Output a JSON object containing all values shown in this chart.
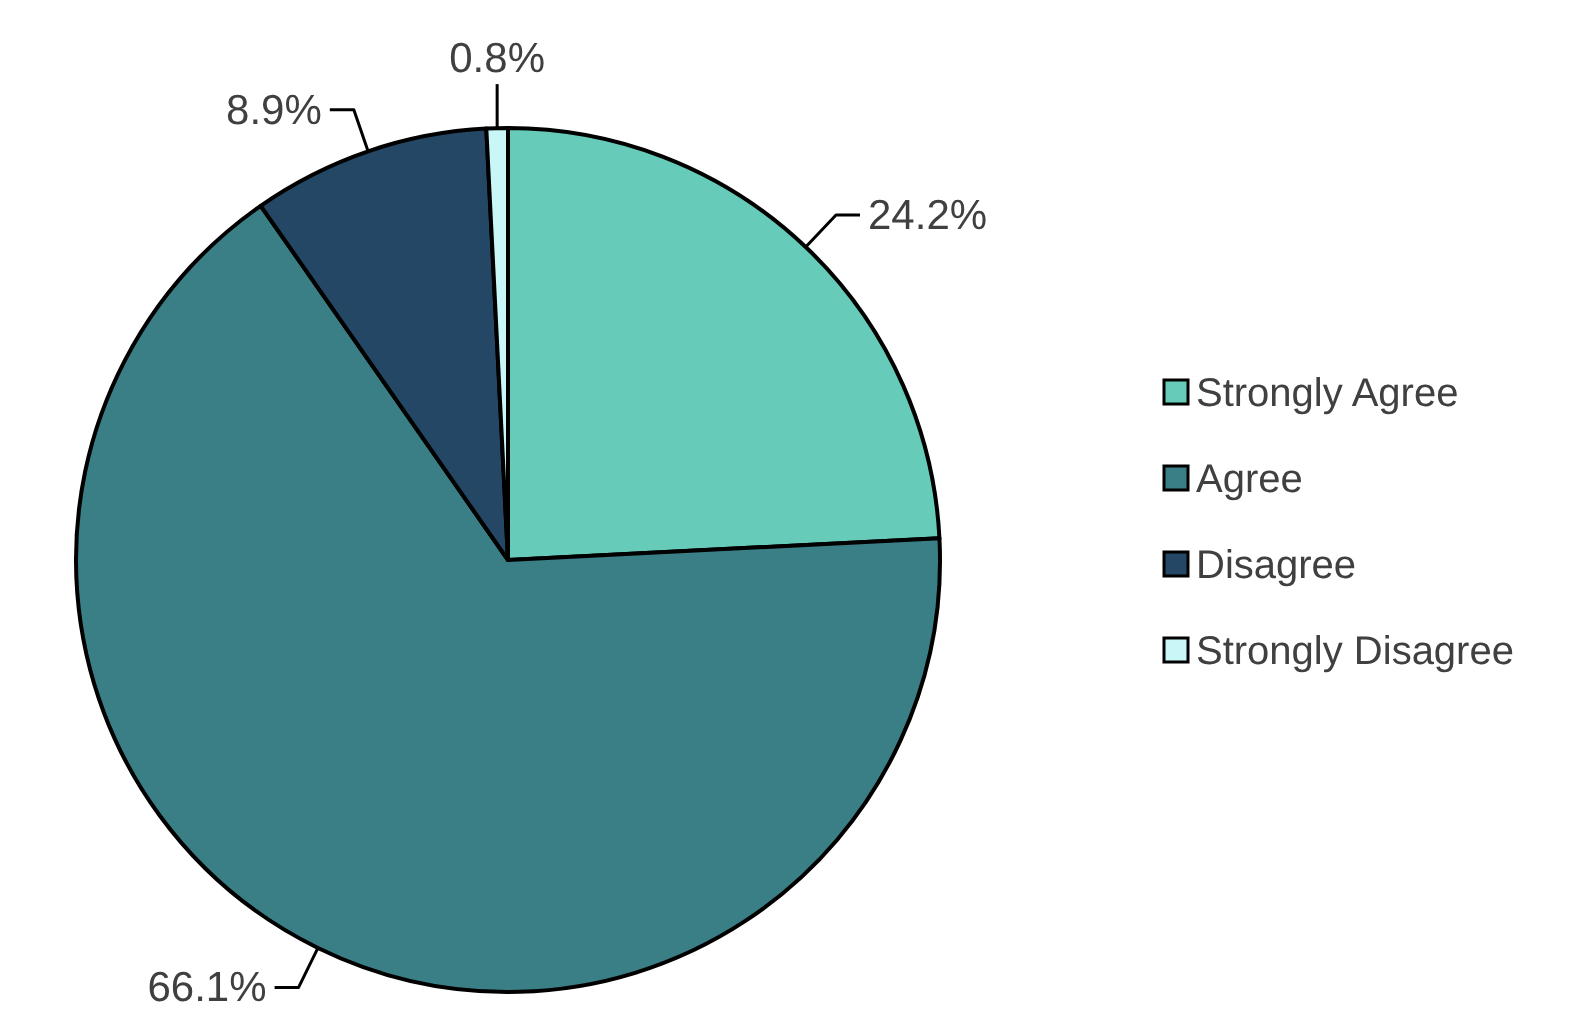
{
  "chart_data": {
    "type": "pie",
    "categories": [
      "Strongly Agree",
      "Agree",
      "Disagree",
      "Strongly Disagree"
    ],
    "values": [
      24.2,
      66.1,
      8.9,
      0.8
    ],
    "colors": [
      "#66cbb9",
      "#3a7f86",
      "#234764",
      "#c9f7f7"
    ],
    "value_labels": [
      "24.2%",
      "66.1%",
      "8.9%",
      "0.8%"
    ],
    "legend": "right"
  }
}
